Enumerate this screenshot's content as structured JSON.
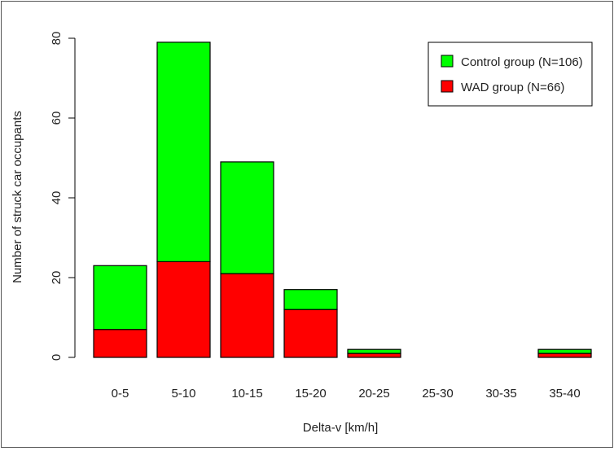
{
  "chart_data": {
    "type": "bar",
    "stacked": true,
    "categories": [
      "0-5",
      "5-10",
      "10-15",
      "15-20",
      "20-25",
      "25-30",
      "30-35",
      "35-40"
    ],
    "series": [
      {
        "name": "WAD group (N=66)",
        "color": "#ff0000",
        "values": [
          7,
          24,
          21,
          12,
          1,
          0,
          0,
          1
        ]
      },
      {
        "name": "Control group (N=106)",
        "color": "#00ff00",
        "values": [
          16,
          55,
          28,
          5,
          1,
          0,
          0,
          1
        ]
      }
    ],
    "title": "",
    "xlabel": "Delta-v [km/h]",
    "ylabel": "Number of struck car occupants",
    "ylim": [
      0,
      80
    ],
    "yticks": [
      0,
      20,
      40,
      60,
      80
    ],
    "legend": {
      "position": "top-right",
      "entries": [
        {
          "label": "Control group (N=106)",
          "color": "#00ff00"
        },
        {
          "label": "WAD group (N=66)",
          "color": "#ff0000"
        }
      ]
    },
    "grid": false
  }
}
